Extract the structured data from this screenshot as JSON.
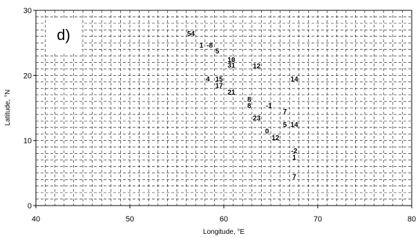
{
  "chart_data": {
    "type": "scatter",
    "panel_label": "d)",
    "xlabel": "Longitude, °E",
    "ylabel": "Latitude, °N",
    "xlim": [
      40,
      80
    ],
    "ylim": [
      0,
      30
    ],
    "xticks": [
      40,
      50,
      60,
      70,
      80
    ],
    "yticks": [
      0,
      10,
      20,
      30
    ],
    "grid": true,
    "grid_step": 1,
    "points": [
      {
        "lon": 56.5,
        "lat": 26.5,
        "label": "54"
      },
      {
        "lon": 57.6,
        "lat": 24.7,
        "label": "1"
      },
      {
        "lon": 58.5,
        "lat": 24.7,
        "label": "-8"
      },
      {
        "lon": 59.3,
        "lat": 23.8,
        "label": "5"
      },
      {
        "lon": 60.8,
        "lat": 22.5,
        "label": "10"
      },
      {
        "lon": 60.8,
        "lat": 21.6,
        "label": "31"
      },
      {
        "lon": 63.5,
        "lat": 21.5,
        "label": "12"
      },
      {
        "lon": 58.3,
        "lat": 19.5,
        "label": "4"
      },
      {
        "lon": 59.5,
        "lat": 19.5,
        "label": "15"
      },
      {
        "lon": 59.5,
        "lat": 18.5,
        "label": "17"
      },
      {
        "lon": 67.5,
        "lat": 19.5,
        "label": "14"
      },
      {
        "lon": 60.8,
        "lat": 17.5,
        "label": "21"
      },
      {
        "lon": 62.7,
        "lat": 16.4,
        "label": "8"
      },
      {
        "lon": 62.7,
        "lat": 15.4,
        "label": "8"
      },
      {
        "lon": 64.8,
        "lat": 15.4,
        "label": "-1"
      },
      {
        "lon": 66.5,
        "lat": 14.5,
        "label": "7"
      },
      {
        "lon": 63.5,
        "lat": 13.5,
        "label": "23"
      },
      {
        "lon": 66.5,
        "lat": 12.5,
        "label": "5"
      },
      {
        "lon": 67.5,
        "lat": 12.5,
        "label": "14"
      },
      {
        "lon": 64.6,
        "lat": 11.5,
        "label": "0"
      },
      {
        "lon": 65.5,
        "lat": 10.5,
        "label": "12"
      },
      {
        "lon": 67.5,
        "lat": 8.5,
        "label": "-2"
      },
      {
        "lon": 67.5,
        "lat": 7.5,
        "label": "1"
      },
      {
        "lon": 67.5,
        "lat": 4.5,
        "label": "7"
      }
    ]
  }
}
